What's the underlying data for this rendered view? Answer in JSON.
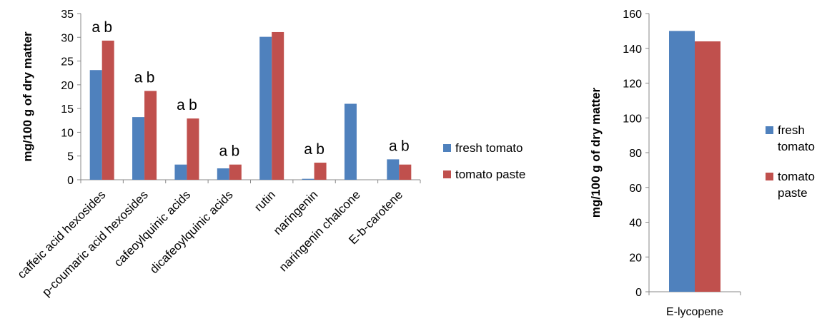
{
  "colors": {
    "fresh": "#4F81BD",
    "paste": "#C0504D",
    "axis": "#888888"
  },
  "chart_data": [
    {
      "type": "bar",
      "ylabel": "mg/100 g of dry matter",
      "ylim": [
        0,
        35
      ],
      "yticks": [
        "0",
        "5",
        "10",
        "15",
        "20",
        "25",
        "30",
        "35"
      ],
      "categories": [
        "caffeic acid hexosides",
        "p-coumaric acid hexosides",
        "cafeoylquinic acids",
        "dicafeoylquinic acids",
        "rutin",
        "naringenin",
        "naringenin chalcone",
        "E-b-carotene"
      ],
      "series": [
        {
          "name": "fresh tomato",
          "values": [
            23.1,
            13.2,
            3.2,
            2.4,
            30.1,
            0.2,
            16.0,
            4.3
          ]
        },
        {
          "name": "tomato paste",
          "values": [
            29.3,
            18.7,
            12.9,
            3.2,
            31.1,
            3.6,
            0,
            3.2
          ]
        }
      ],
      "annotations": [
        {
          "category": "caffeic acid hexosides",
          "labels": [
            "a",
            "b"
          ]
        },
        {
          "category": "p-coumaric acid hexosides",
          "labels": [
            "a",
            "b"
          ]
        },
        {
          "category": "cafeoylquinic acids",
          "labels": [
            "a",
            "b"
          ]
        },
        {
          "category": "dicafeoylquinic acids",
          "labels": [
            "a",
            "b"
          ]
        },
        {
          "category": "naringenin",
          "labels": [
            "a",
            "b"
          ]
        },
        {
          "category": "E-b-carotene",
          "labels": [
            "a",
            "b"
          ]
        }
      ],
      "legend": [
        "fresh tomato",
        "tomato paste"
      ],
      "legend_position": "right",
      "grid": false
    },
    {
      "type": "bar",
      "ylabel": "mg/100 g of dry matter",
      "ylim": [
        0,
        160
      ],
      "yticks": [
        "0",
        "20",
        "40",
        "60",
        "80",
        "100",
        "120",
        "140",
        "160"
      ],
      "categories": [
        "E-lycopene"
      ],
      "series": [
        {
          "name": "fresh tomato",
          "values": [
            150
          ]
        },
        {
          "name": "tomato paste",
          "values": [
            144
          ]
        }
      ],
      "legend": [
        [
          "fresh",
          "tomato"
        ],
        [
          "tomato",
          "paste"
        ]
      ],
      "legend_position": "right",
      "grid": false
    }
  ]
}
